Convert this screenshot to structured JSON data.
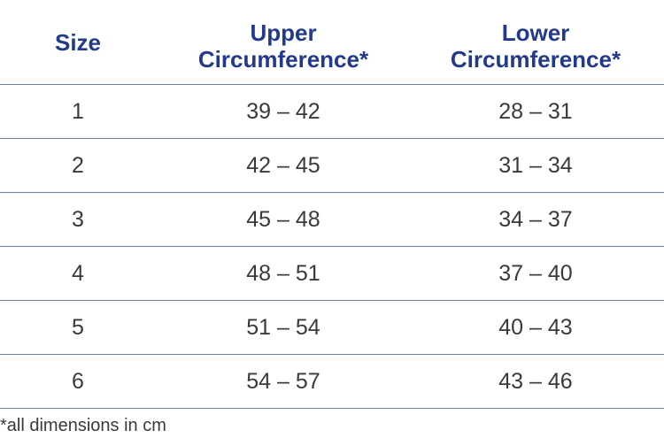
{
  "table": {
    "headers": {
      "size": "Size",
      "upper_line1": "Upper",
      "upper_line2": "Circumference*",
      "lower_line1": "Lower",
      "lower_line2": "Circumference*"
    },
    "rows": [
      {
        "size": "1",
        "upper": "39 – 42",
        "lower": "28 – 31"
      },
      {
        "size": "2",
        "upper": "42 – 45",
        "lower": "31 – 34"
      },
      {
        "size": "3",
        "upper": "45 – 48",
        "lower": "34 – 37"
      },
      {
        "size": "4",
        "upper": "48 – 51",
        "lower": "37 – 40"
      },
      {
        "size": "5",
        "upper": "51 – 54",
        "lower": "40 – 43"
      },
      {
        "size": "6",
        "upper": "54 – 57",
        "lower": "43 – 46"
      }
    ]
  },
  "footnote": "*all dimensions in cm",
  "colors": {
    "header_text": "#233a8c",
    "body_text": "#3a3a3a",
    "divider": "#6d7fa6"
  }
}
